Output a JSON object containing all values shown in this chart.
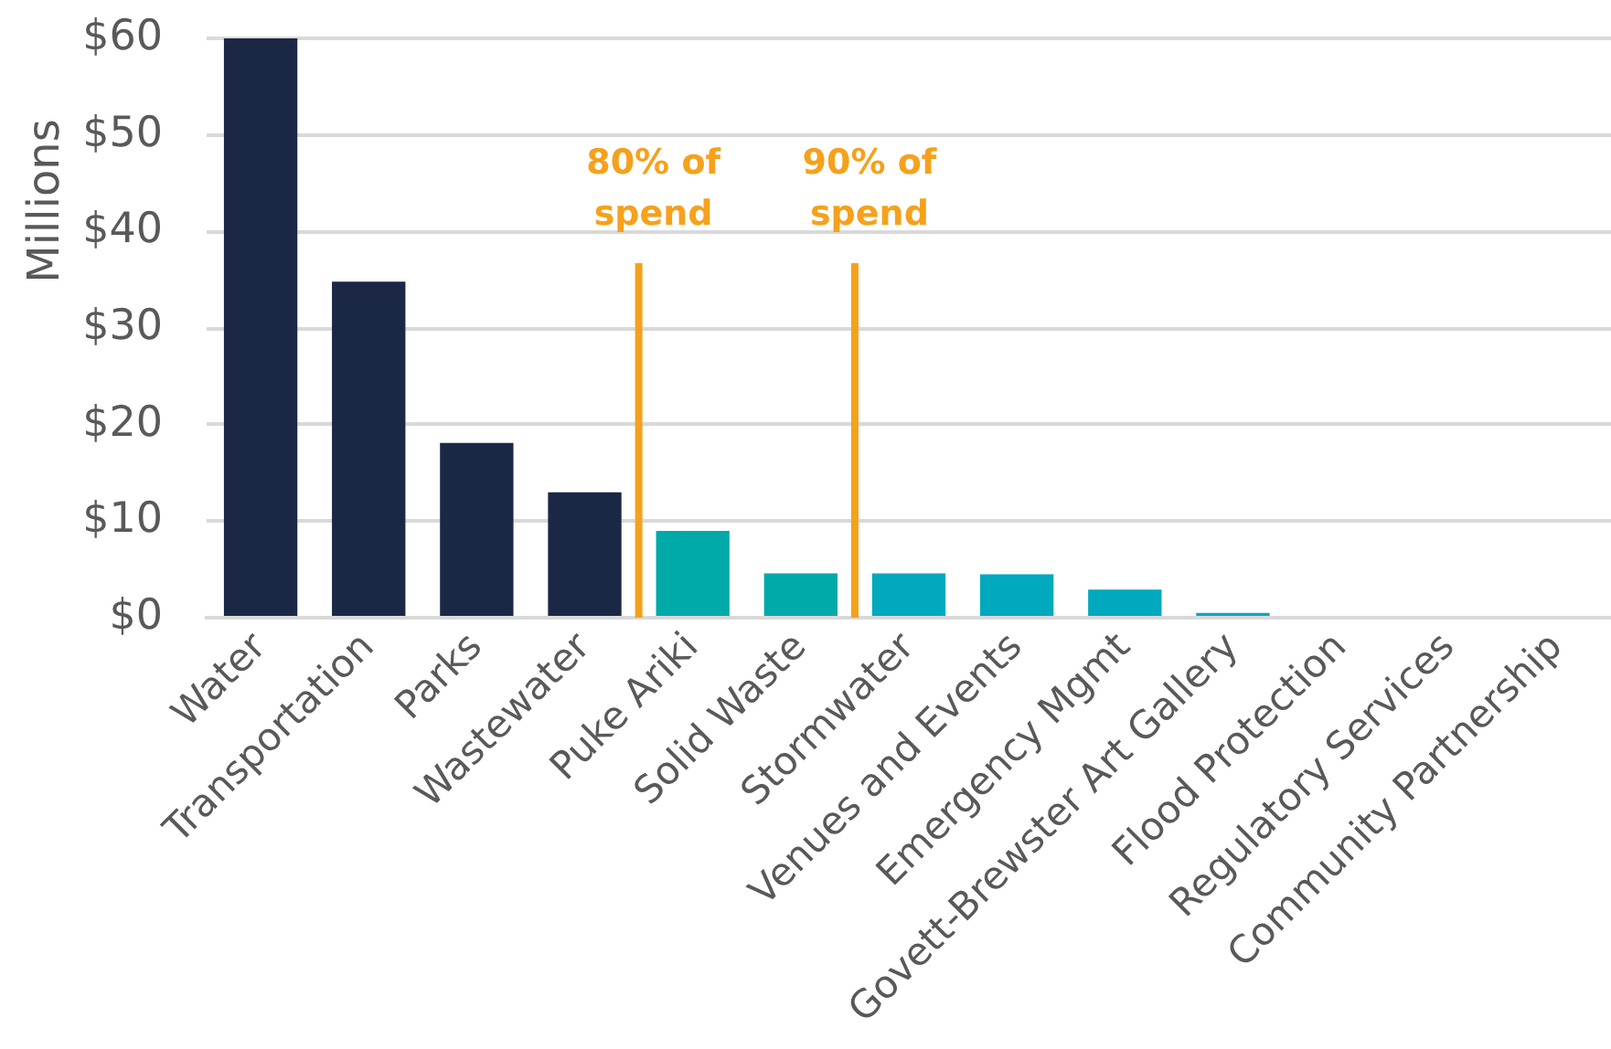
{
  "chart_data": {
    "type": "bar",
    "ylabel": "Millions",
    "categories": [
      "Water",
      "Transportation",
      "Parks",
      "Wastewater",
      "Puke Ariki",
      "Solid Waste",
      "Stormwater",
      "Venues and Events",
      "Emergency Mgmt",
      "Govett-Brewster Art Gallery",
      "Flood Protection",
      "Regulatory Services",
      "Community Partnership"
    ],
    "values": [
      60,
      34.8,
      18.1,
      13.0,
      9.0,
      4.6,
      4.6,
      4.5,
      2.9,
      0.5,
      0,
      0,
      0
    ],
    "colors": [
      "#1b2845",
      "#1b2845",
      "#1b2845",
      "#1b2845",
      "#00aaa9",
      "#00aaa9",
      "#00a9bd",
      "#00a9bd",
      "#00a9bd",
      "#00a9bd",
      "#00a9bd",
      "#00a9bd",
      "#00a9bd"
    ],
    "ylim": [
      0,
      60
    ],
    "yticks": [
      {
        "value": 0,
        "label": "$0"
      },
      {
        "value": 10,
        "label": "$10"
      },
      {
        "value": 20,
        "label": "$20"
      },
      {
        "value": 30,
        "label": "$30"
      },
      {
        "value": 40,
        "label": "$40"
      },
      {
        "value": 50,
        "label": "$50"
      },
      {
        "value": 60,
        "label": "$60"
      }
    ],
    "grid": "y",
    "annotations": [
      "80% of spend",
      "90% of spend"
    ]
  }
}
